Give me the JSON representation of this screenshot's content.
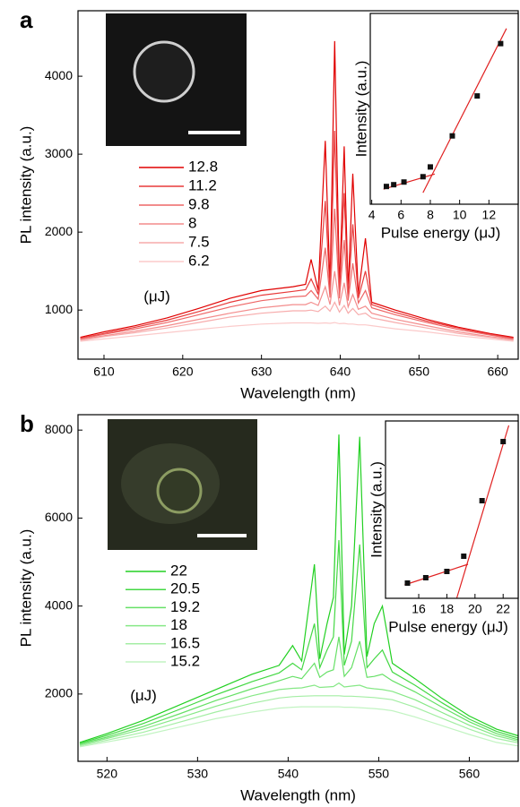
{
  "chart_data": [
    {
      "type": "line",
      "panel_label": "a",
      "xlabel": "Wavelength (nm)",
      "ylabel": "PL intensity (a.u.)",
      "legend_title": "(μJ)",
      "xlim": [
        606.7,
        662.6
      ],
      "xticks": [
        610,
        620,
        630,
        640,
        650,
        660
      ],
      "ylim": [
        370,
        4840
      ],
      "yticks": [
        1000,
        2000,
        3000,
        4000
      ],
      "x": [
        607,
        610,
        614,
        618,
        622,
        626,
        630,
        634,
        635.6,
        636.3,
        637.2,
        638.1,
        638.7,
        639.3,
        639.9,
        640.5,
        641,
        641.6,
        642.3,
        643.2,
        644,
        647,
        651,
        655,
        659,
        662
      ],
      "series": [
        {
          "name": "12.8",
          "color": "#e00000",
          "values": [
            650,
            720,
            800,
            900,
            1020,
            1150,
            1250,
            1300,
            1330,
            1650,
            1250,
            3170,
            1300,
            4450,
            1280,
            3100,
            1250,
            2750,
            1200,
            1920,
            1100,
            1000,
            880,
            780,
            700,
            650
          ]
        },
        {
          "name": "11.2",
          "color": "#e83a3a",
          "values": [
            640,
            700,
            780,
            870,
            980,
            1100,
            1190,
            1240,
            1260,
            1400,
            1200,
            2400,
            1230,
            3300,
            1220,
            2500,
            1190,
            2100,
            1150,
            1500,
            1070,
            970,
            860,
            770,
            690,
            640
          ]
        },
        {
          "name": "9.8",
          "color": "#ee6666",
          "values": [
            630,
            690,
            760,
            840,
            940,
            1040,
            1120,
            1170,
            1180,
            1250,
            1140,
            1800,
            1160,
            2300,
            1150,
            1900,
            1120,
            1600,
            1090,
            1250,
            1030,
            940,
            840,
            750,
            680,
            630
          ]
        },
        {
          "name": "8",
          "color": "#f38c8c",
          "values": [
            620,
            670,
            730,
            800,
            880,
            960,
            1030,
            1070,
            1070,
            1100,
            1060,
            1300,
            1070,
            1500,
            1060,
            1350,
            1040,
            1200,
            1010,
            1050,
            960,
            880,
            800,
            720,
            660,
            620
          ]
        },
        {
          "name": "7.5",
          "color": "#f7acac",
          "values": [
            610,
            660,
            710,
            770,
            840,
            910,
            960,
            990,
            990,
            1000,
            980,
            1050,
            985,
            1100,
            975,
            1060,
            960,
            1020,
            940,
            960,
            900,
            840,
            770,
            700,
            650,
            610
          ]
        },
        {
          "name": "6.2",
          "color": "#fbcaca",
          "values": [
            600,
            630,
            670,
            710,
            750,
            790,
            820,
            835,
            835,
            835,
            830,
            835,
            830,
            840,
            825,
            830,
            820,
            820,
            810,
            810,
            800,
            760,
            720,
            670,
            630,
            600
          ]
        }
      ]
    },
    {
      "type": "scatter",
      "xlabel": "Pulse energy (μJ)",
      "ylabel": "Intensity (a.u.)",
      "xlim": [
        3.9,
        14
      ],
      "xticks": [
        4,
        6,
        8,
        10,
        12
      ],
      "ylim": [
        0,
        215
      ],
      "x": [
        5,
        5.5,
        6.2,
        7.5,
        8,
        9.5,
        11.2,
        12.8
      ],
      "series": [
        {
          "color": "#111111",
          "values": [
            20,
            22,
            25,
            31,
            42,
            77,
            122,
            181
          ]
        }
      ],
      "fit_color": "#e02020",
      "fits": [
        {
          "x": [
            4.8,
            8.3
          ],
          "values": [
            17,
            34
          ]
        },
        {
          "x": [
            7.5,
            13.2
          ],
          "values": [
            13,
            198
          ]
        }
      ]
    },
    {
      "type": "line",
      "panel_label": "b",
      "xlabel": "Wavelength (nm)",
      "ylabel": "PL intensity (a.u.)",
      "legend_title": "(μJ)",
      "xlim": [
        516.8,
        565.4
      ],
      "xticks": [
        520,
        530,
        540,
        550,
        560
      ],
      "ylim": [
        470,
        8350
      ],
      "yticks": [
        2000,
        4000,
        6000,
        8000
      ],
      "x": [
        517,
        520,
        524,
        528,
        532,
        536,
        539,
        540.5,
        541.5,
        542.9,
        543.5,
        544.3,
        545,
        545.6,
        546.2,
        547,
        547.9,
        548.7,
        549.5,
        550.4,
        551.5,
        554,
        557,
        560,
        563,
        565.4
      ],
      "series": [
        {
          "name": "22",
          "color": "#22d022",
          "values": [
            900,
            1100,
            1400,
            1750,
            2100,
            2450,
            2650,
            3100,
            2750,
            4950,
            2800,
            3600,
            4200,
            7900,
            2900,
            4000,
            7850,
            2850,
            3600,
            4000,
            2700,
            2350,
            1900,
            1500,
            1200,
            1050
          ]
        },
        {
          "name": "20.5",
          "color": "#44d844",
          "values": [
            880,
            1060,
            1330,
            1650,
            1980,
            2280,
            2480,
            2700,
            2550,
            3600,
            2600,
            3000,
            3300,
            5500,
            2650,
            3200,
            5400,
            2600,
            2800,
            3000,
            2500,
            2200,
            1800,
            1430,
            1150,
            1000
          ]
        },
        {
          "name": "19.2",
          "color": "#66e066",
          "values": [
            860,
            1020,
            1260,
            1550,
            1850,
            2120,
            2300,
            2400,
            2350,
            2700,
            2380,
            2500,
            2550,
            3300,
            2400,
            2600,
            3200,
            2380,
            2400,
            2450,
            2300,
            2050,
            1700,
            1370,
            1100,
            960
          ]
        },
        {
          "name": "18",
          "color": "#86e886",
          "values": [
            840,
            990,
            1200,
            1460,
            1720,
            1960,
            2100,
            2130,
            2140,
            2200,
            2150,
            2160,
            2170,
            2250,
            2160,
            2180,
            2200,
            2140,
            2120,
            2100,
            2060,
            1870,
            1580,
            1290,
            1050,
            930
          ]
        },
        {
          "name": "16.5",
          "color": "#a4eea4",
          "values": [
            820,
            950,
            1130,
            1360,
            1590,
            1790,
            1910,
            1940,
            1950,
            1960,
            1960,
            1960,
            1960,
            1960,
            1950,
            1950,
            1940,
            1930,
            1920,
            1900,
            1870,
            1700,
            1450,
            1200,
            990,
            890
          ]
        },
        {
          "name": "15.2",
          "color": "#c2f4c2",
          "values": [
            800,
            910,
            1060,
            1250,
            1440,
            1590,
            1680,
            1700,
            1710,
            1710,
            1710,
            1710,
            1710,
            1710,
            1700,
            1700,
            1690,
            1680,
            1670,
            1650,
            1620,
            1480,
            1280,
            1080,
            900,
            820
          ]
        }
      ]
    },
    {
      "type": "scatter",
      "xlabel": "Pulse energy (μJ)",
      "ylabel": "Intensity (a.u.)",
      "xlim": [
        13.64,
        23.07
      ],
      "xticks": [
        16,
        18,
        20,
        22
      ],
      "ylim": [
        0,
        198
      ],
      "x": [
        15.2,
        16.5,
        18,
        19.2,
        20.5,
        22
      ],
      "series": [
        {
          "color": "#111111",
          "values": [
            17,
            23,
            30,
            47,
            109,
            175
          ]
        }
      ],
      "fit_color": "#e02020",
      "fits": [
        {
          "x": [
            15,
            19.5
          ],
          "values": [
            15,
            38
          ]
        },
        {
          "x": [
            18.7,
            22.4
          ],
          "values": [
            0,
            193
          ]
        }
      ]
    }
  ]
}
